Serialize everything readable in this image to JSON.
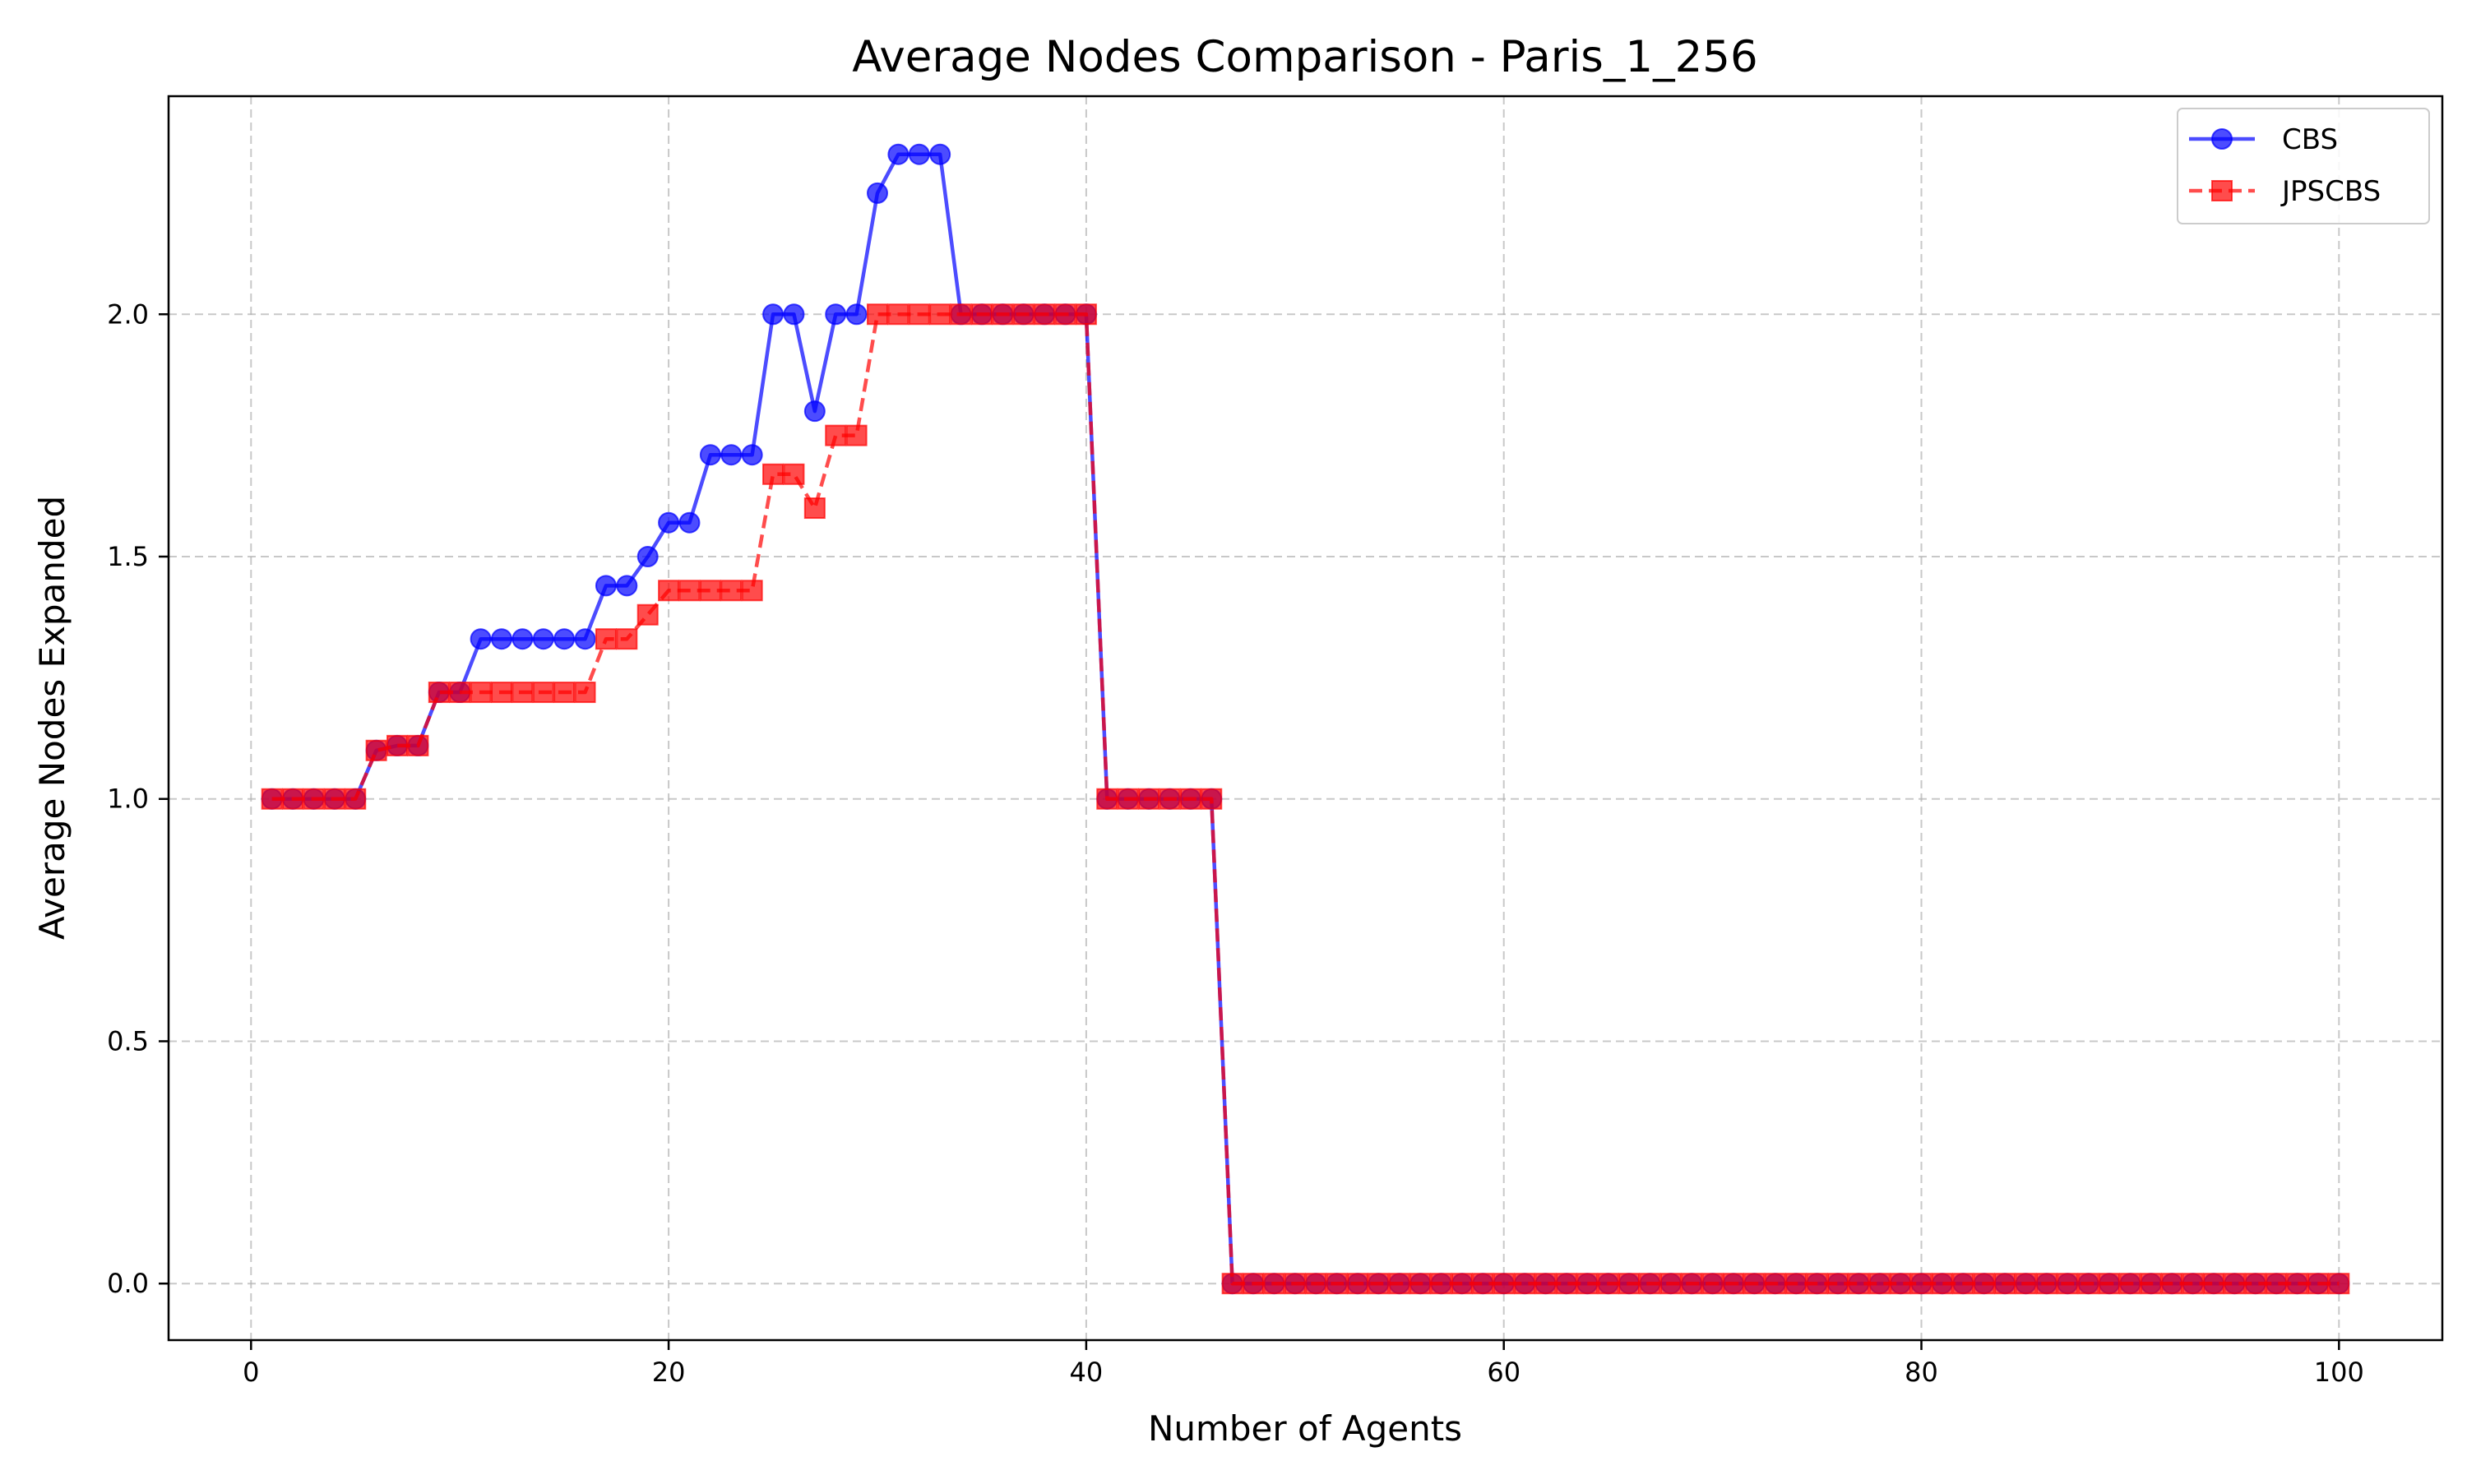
{
  "chart_data": {
    "type": "line",
    "title": "Average Nodes Comparison - Paris_1_256",
    "xlabel": "Number of Agents",
    "ylabel": "Average Nodes Expanded",
    "xlim": [
      -3.95,
      104.95
    ],
    "ylim": [
      -0.1167,
      2.45
    ],
    "x_ticks": [
      0,
      20,
      40,
      60,
      80,
      100
    ],
    "y_ticks": [
      0.0,
      0.5,
      1.0,
      1.5,
      2.0
    ],
    "x_tick_labels": [
      "0",
      "20",
      "40",
      "60",
      "80",
      "100"
    ],
    "y_tick_labels": [
      "0.0",
      "0.5",
      "1.0",
      "1.5",
      "2.0"
    ],
    "grid": true,
    "legend_position": "top-right",
    "x": [
      1,
      2,
      3,
      4,
      5,
      6,
      7,
      8,
      9,
      10,
      11,
      12,
      13,
      14,
      15,
      16,
      17,
      18,
      19,
      20,
      21,
      22,
      23,
      24,
      25,
      26,
      27,
      28,
      29,
      30,
      31,
      32,
      33,
      34,
      35,
      36,
      37,
      38,
      39,
      40,
      41,
      42,
      43,
      44,
      45,
      46,
      47,
      48,
      49,
      50,
      51,
      52,
      53,
      54,
      55,
      56,
      57,
      58,
      59,
      60,
      61,
      62,
      63,
      64,
      65,
      66,
      67,
      68,
      69,
      70,
      71,
      72,
      73,
      74,
      75,
      76,
      77,
      78,
      79,
      80,
      81,
      82,
      83,
      84,
      85,
      86,
      87,
      88,
      89,
      90,
      91,
      92,
      93,
      94,
      95,
      96,
      97,
      98,
      99,
      100
    ],
    "series": [
      {
        "name": "CBS",
        "color": "#0000ff",
        "linestyle": "solid",
        "marker": "circle",
        "values": [
          1.0,
          1.0,
          1.0,
          1.0,
          1.0,
          1.1,
          1.11,
          1.11,
          1.22,
          1.22,
          1.33,
          1.33,
          1.33,
          1.33,
          1.33,
          1.33,
          1.44,
          1.44,
          1.5,
          1.57,
          1.57,
          1.71,
          1.71,
          1.71,
          2.0,
          2.0,
          1.8,
          2.0,
          2.0,
          2.25,
          2.33,
          2.33,
          2.33,
          2.0,
          2.0,
          2.0,
          2.0,
          2.0,
          2.0,
          2.0,
          1.0,
          1.0,
          1.0,
          1.0,
          1.0,
          1.0,
          0.0,
          0.0,
          0.0,
          0.0,
          0.0,
          0.0,
          0.0,
          0.0,
          0.0,
          0.0,
          0.0,
          0.0,
          0.0,
          0.0,
          0.0,
          0.0,
          0.0,
          0.0,
          0.0,
          0.0,
          0.0,
          0.0,
          0.0,
          0.0,
          0.0,
          0.0,
          0.0,
          0.0,
          0.0,
          0.0,
          0.0,
          0.0,
          0.0,
          0.0,
          0.0,
          0.0,
          0.0,
          0.0,
          0.0,
          0.0,
          0.0,
          0.0,
          0.0,
          0.0,
          0.0,
          0.0,
          0.0,
          0.0,
          0.0,
          0.0,
          0.0,
          0.0,
          0.0,
          0.0
        ]
      },
      {
        "name": "JPSCBS",
        "color": "#ff0000",
        "linestyle": "dashed",
        "marker": "square",
        "values": [
          1.0,
          1.0,
          1.0,
          1.0,
          1.0,
          1.1,
          1.11,
          1.11,
          1.22,
          1.22,
          1.22,
          1.22,
          1.22,
          1.22,
          1.22,
          1.22,
          1.33,
          1.33,
          1.38,
          1.43,
          1.43,
          1.43,
          1.43,
          1.43,
          1.67,
          1.67,
          1.6,
          1.75,
          1.75,
          2.0,
          2.0,
          2.0,
          2.0,
          2.0,
          2.0,
          2.0,
          2.0,
          2.0,
          2.0,
          2.0,
          1.0,
          1.0,
          1.0,
          1.0,
          1.0,
          1.0,
          0.0,
          0.0,
          0.0,
          0.0,
          0.0,
          0.0,
          0.0,
          0.0,
          0.0,
          0.0,
          0.0,
          0.0,
          0.0,
          0.0,
          0.0,
          0.0,
          0.0,
          0.0,
          0.0,
          0.0,
          0.0,
          0.0,
          0.0,
          0.0,
          0.0,
          0.0,
          0.0,
          0.0,
          0.0,
          0.0,
          0.0,
          0.0,
          0.0,
          0.0,
          0.0,
          0.0,
          0.0,
          0.0,
          0.0,
          0.0,
          0.0,
          0.0,
          0.0,
          0.0,
          0.0,
          0.0,
          0.0,
          0.0,
          0.0,
          0.0,
          0.0,
          0.0,
          0.0,
          0.0
        ]
      }
    ]
  }
}
